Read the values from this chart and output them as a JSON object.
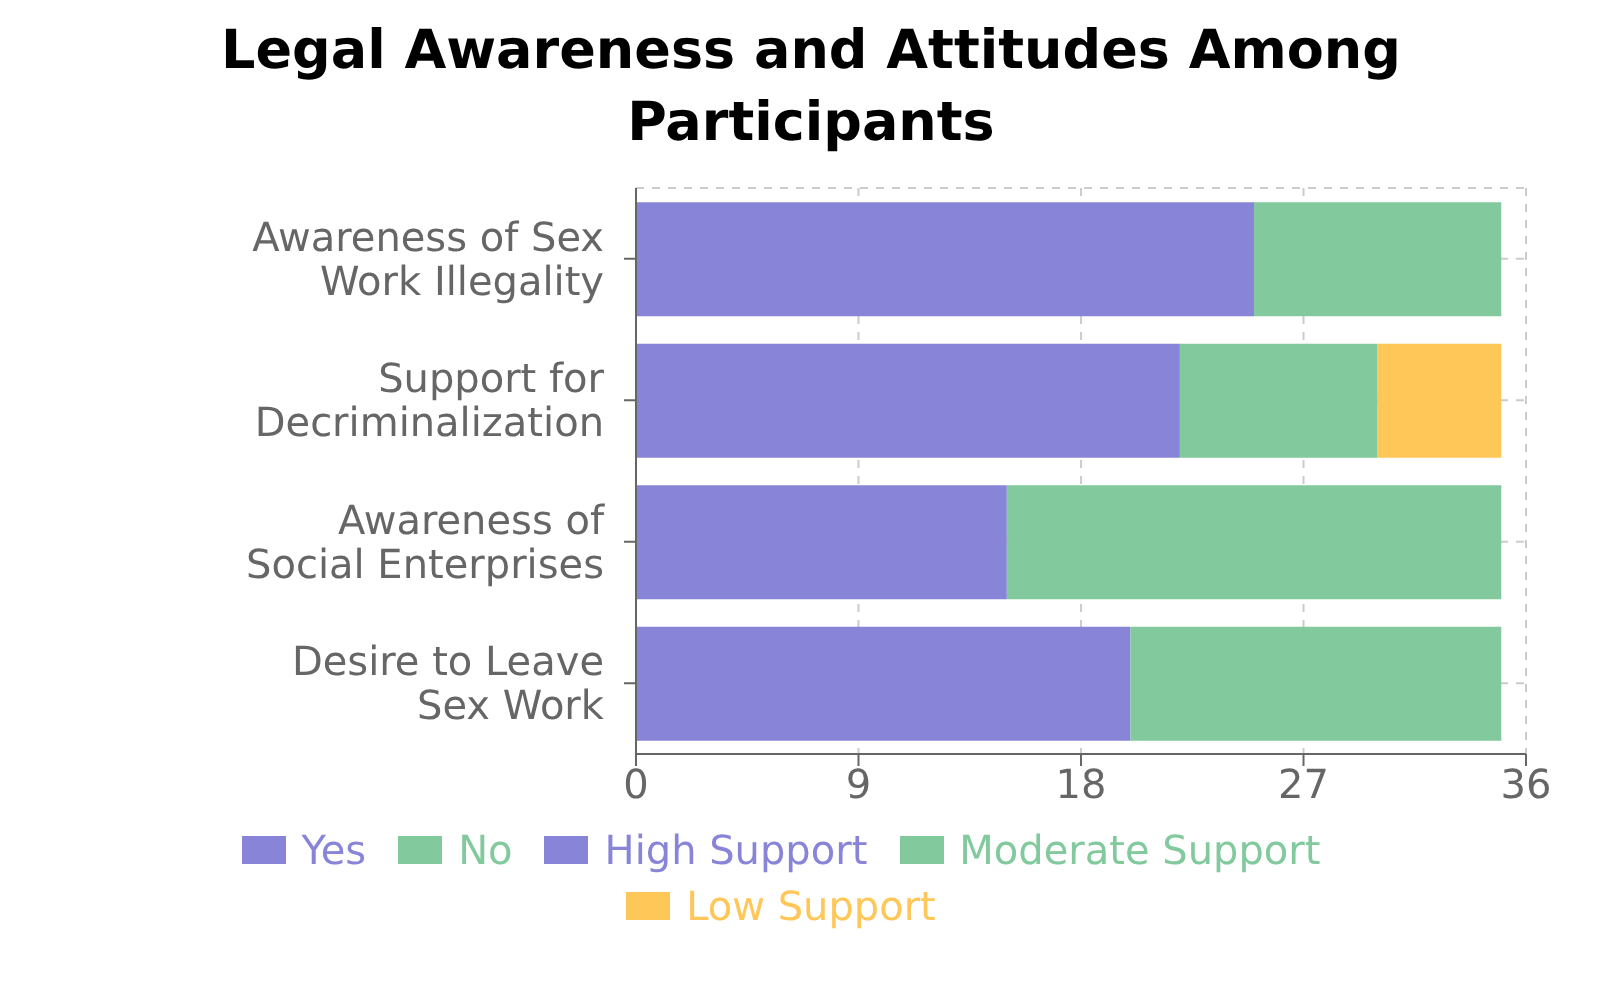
{
  "chart_data": {
    "type": "bar",
    "orientation": "horizontal",
    "stacked": true,
    "title": "Legal Awareness and Attitudes Among Participants",
    "categories": [
      "Awareness of Sex Work Illegality",
      "Support for Decriminalization",
      "Awareness of Social Enterprises",
      "Desire to Leave Sex Work"
    ],
    "series": [
      {
        "name": "Yes",
        "color": "#8884d8",
        "values": [
          25,
          null,
          15,
          20
        ]
      },
      {
        "name": "No",
        "color": "#82ca9d",
        "values": [
          10,
          null,
          20,
          15
        ]
      },
      {
        "name": "High Support",
        "color": "#8884d8",
        "values": [
          null,
          22,
          null,
          null
        ]
      },
      {
        "name": "Moderate Support",
        "color": "#82ca9d",
        "values": [
          null,
          8,
          null,
          null
        ]
      },
      {
        "name": "Low Support",
        "color": "#ffc658",
        "values": [
          null,
          5,
          null,
          null
        ]
      }
    ],
    "xlim": [
      0,
      36
    ],
    "xticks": [
      0,
      9,
      18,
      27,
      36
    ],
    "grid": true,
    "legend": "bottom"
  }
}
